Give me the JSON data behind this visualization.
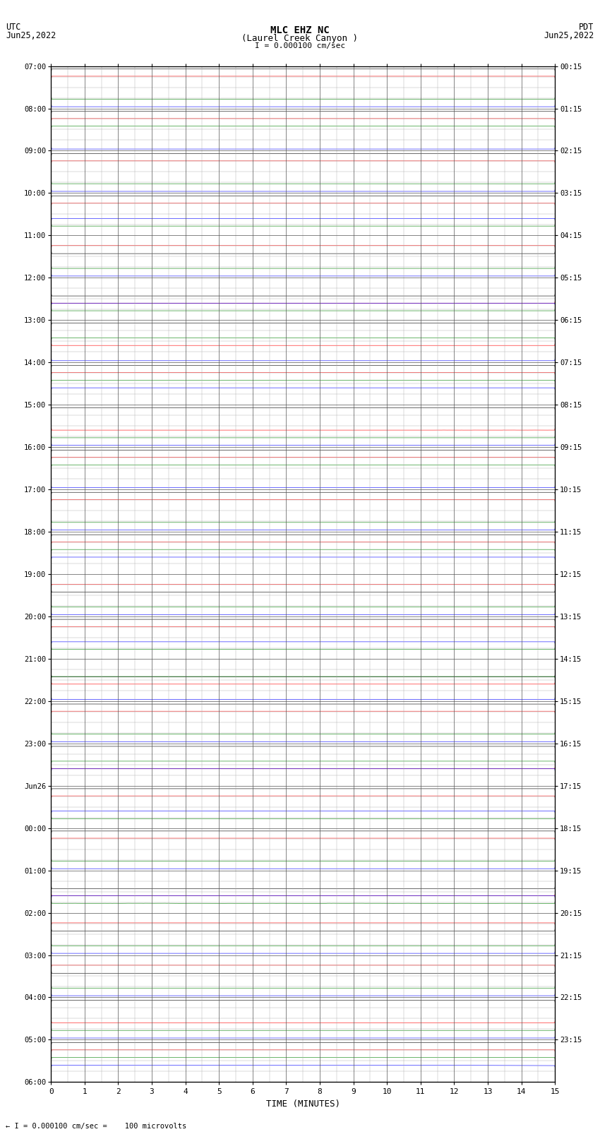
{
  "title_line1": "MLC EHZ NC",
  "title_line2": "(Laurel Creek Canyon )",
  "scale_label": "I = 0.000100 cm/sec",
  "left_header": "UTC",
  "left_date": "Jun25,2022",
  "right_header": "PDT",
  "right_date": "Jun25,2022",
  "bottom_label": "TIME (MINUTES)",
  "bottom_note": "← I = 0.000100 cm/sec =    100 microvolts",
  "xlabel_ticks": [
    0,
    1,
    2,
    3,
    4,
    5,
    6,
    7,
    8,
    9,
    10,
    11,
    12,
    13,
    14,
    15
  ],
  "utc_times": [
    "07:00",
    "08:00",
    "09:00",
    "10:00",
    "11:00",
    "12:00",
    "13:00",
    "14:00",
    "15:00",
    "16:00",
    "17:00",
    "18:00",
    "19:00",
    "20:00",
    "21:00",
    "22:00",
    "23:00",
    "Jun26",
    "00:00",
    "01:00",
    "02:00",
    "03:00",
    "04:00",
    "05:00",
    "06:00"
  ],
  "pdt_times": [
    "00:15",
    "01:15",
    "02:15",
    "03:15",
    "04:15",
    "05:15",
    "06:15",
    "07:15",
    "08:15",
    "09:15",
    "10:15",
    "11:15",
    "12:15",
    "13:15",
    "14:15",
    "15:15",
    "16:15",
    "17:15",
    "18:15",
    "19:15",
    "20:15",
    "21:15",
    "22:15",
    "23:15"
  ],
  "n_rows": 24,
  "n_cols": 15,
  "bg_color": "#ffffff",
  "grid_color": "#aaaaaa",
  "grid_color_dark": "#555555",
  "trace_colors": [
    "black",
    "red",
    "green",
    "blue"
  ],
  "fig_width": 8.5,
  "fig_height": 16.13
}
